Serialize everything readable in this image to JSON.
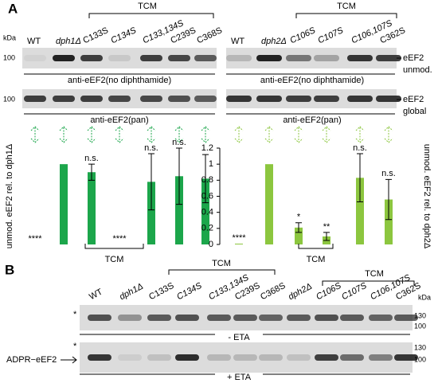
{
  "panel_a": {
    "label": "A",
    "kda": "kDa",
    "left_blot": {
      "lanes": [
        "WT",
        "dph1Δ",
        "C133S",
        "C134S",
        "C133,134S",
        "C239S",
        "C368S"
      ],
      "tcm": "TCM",
      "markers": [
        "100",
        "100"
      ],
      "antibodies": [
        "anti-eEF2(no diphthamide)",
        "anti-eEF2(pan)"
      ]
    },
    "right_blot": {
      "lanes": [
        "WT",
        "dph2Δ",
        "C106S",
        "C107S",
        "C106,107S",
        "C362S"
      ],
      "tcm": "TCM",
      "antibodies": [
        "anti-eEF2(no diphthamide)",
        "anti-eEF2(pan)"
      ],
      "band_labels": [
        [
          "eEF2",
          "unmod."
        ],
        [
          "eEF2",
          "global"
        ]
      ]
    }
  },
  "chart_data": [
    {
      "type": "bar",
      "ylabel": "unmod. eEF2 rel. to dph1Δ",
      "color": "#1ca64b",
      "values": [
        0,
        1,
        0.9,
        0,
        0.78,
        0.85,
        0.82
      ],
      "errors": [
        null,
        null,
        0.1,
        null,
        0.35,
        0.35,
        0.3
      ],
      "annotations": [
        "****",
        null,
        "n.s.",
        "****",
        "n.s.",
        "n.s.",
        null
      ],
      "bracket": "TCM",
      "ylim": [
        0,
        1.2
      ]
    },
    {
      "type": "bar",
      "ylabel": "unmod. eEF2 rel. to dph2Δ",
      "color": "#8cc63f",
      "values": [
        0.01,
        1,
        0.21,
        0.1,
        0.83,
        0.56
      ],
      "errors": [
        null,
        null,
        0.06,
        0.05,
        0.3,
        0.25
      ],
      "annotations": [
        "****",
        null,
        "*",
        "**",
        "n.s.",
        "n.s."
      ],
      "bracket": "TCM",
      "ylim": [
        0,
        1.2
      ],
      "yticks": [
        0,
        0.2,
        0.4,
        0.6,
        0.8,
        1,
        1.2
      ]
    }
  ],
  "panel_b": {
    "label": "B",
    "kda": "kDa",
    "lanes": [
      "WT",
      "dph1Δ",
      "C133S",
      "C134S",
      "C133,134S",
      "C239S",
      "C368S",
      "dph2Δ",
      "C106S",
      "C107S",
      "C106,107S",
      "C362S"
    ],
    "tcm": [
      "TCM",
      "TCM"
    ],
    "blots": [
      {
        "star": "*",
        "markers": [
          "130",
          "100"
        ],
        "condition": "- ETA"
      },
      {
        "star": "*",
        "markers": [
          "130",
          "100"
        ],
        "condition": "+ ETA",
        "band_label": "ADPR−eEF2"
      }
    ]
  }
}
